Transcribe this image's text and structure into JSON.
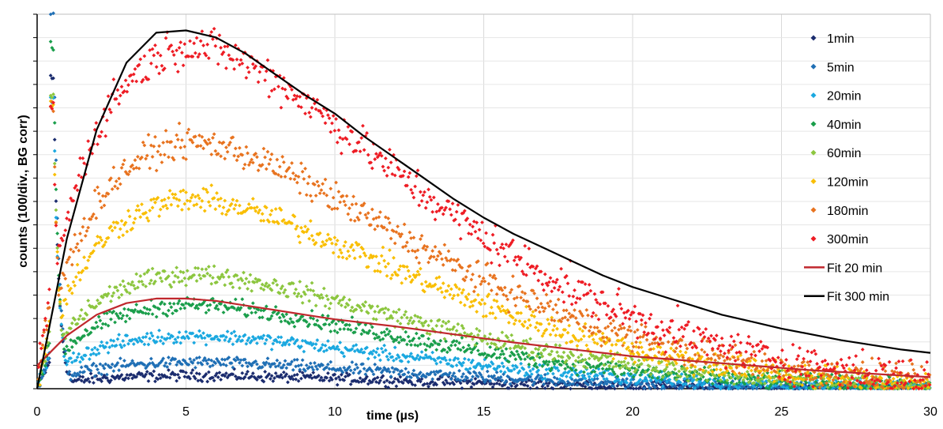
{
  "chart_data": {
    "type": "scatter",
    "xlabel": "time (µs)",
    "ylabel": "counts (100/div., BG corr)",
    "xlim": [
      0,
      30
    ],
    "ylim": [
      0,
      1620
    ],
    "x_ticks": [
      "0",
      "5",
      "10",
      "15",
      "20",
      "25",
      "30"
    ],
    "y_tick_count": 16,
    "grid": "vertical and horizontal, light gray",
    "legend_position": "right",
    "series": [
      {
        "name": "1min",
        "color": "#1b2c6e",
        "marker": "diamond",
        "amplitude": 60,
        "rise_us": 0.9,
        "decay_us": 8,
        "spike_peak": 1350,
        "baseline_end": 10
      },
      {
        "name": "5min",
        "color": "#1f6fb5",
        "marker": "diamond",
        "amplitude": 120,
        "rise_us": 0.9,
        "decay_us": 8,
        "spike_peak": 1620,
        "baseline_end": 20
      },
      {
        "name": "20min",
        "color": "#1aa8e0",
        "marker": "diamond",
        "amplitude": 240,
        "rise_us": 0.9,
        "decay_us": 8,
        "spike_peak": 1270,
        "baseline_end": 60
      },
      {
        "name": "40min",
        "color": "#1a9e4b",
        "marker": "diamond",
        "amplitude": 380,
        "rise_us": 0.9,
        "decay_us": 8,
        "spike_peak": 1460,
        "baseline_end": 110
      },
      {
        "name": "60min",
        "color": "#8cc63f",
        "marker": "diamond",
        "amplitude": 520,
        "rise_us": 0.9,
        "decay_us": 8,
        "spike_peak": 1270,
        "baseline_end": 140
      },
      {
        "name": "120min",
        "color": "#f9be00",
        "marker": "diamond",
        "amplitude": 860,
        "rise_us": 0.9,
        "decay_us": 8,
        "spike_peak": 1240,
        "baseline_end": 230
      },
      {
        "name": "180min",
        "color": "#e8731f",
        "marker": "diamond",
        "amplitude": 1120,
        "rise_us": 0.9,
        "decay_us": 8,
        "spike_peak": 1220,
        "baseline_end": 270
      },
      {
        "name": "300min",
        "color": "#ee1c24",
        "marker": "diamond",
        "amplitude": 1560,
        "rise_us": 0.9,
        "decay_us": 8,
        "spike_peak": 1180,
        "baseline_end": 380
      }
    ],
    "fits": [
      {
        "name": "Fit 20 min",
        "color": "#c0272d",
        "style": "line",
        "x": [
          0,
          1,
          2,
          3,
          4,
          5,
          6,
          7,
          8,
          9,
          10,
          12,
          14,
          16,
          18,
          20,
          22,
          24,
          26,
          28,
          30
        ],
        "y": [
          100,
          230,
          320,
          370,
          390,
          390,
          380,
          360,
          340,
          320,
          300,
          270,
          235,
          200,
          170,
          140,
          120,
          100,
          80,
          65,
          50
        ]
      },
      {
        "name": "Fit 300 min",
        "color": "#000000",
        "style": "line",
        "x": [
          0,
          1,
          2,
          3,
          4,
          5,
          6,
          7,
          8,
          9,
          10,
          11,
          12,
          13,
          14,
          15,
          16,
          17,
          18,
          19,
          20,
          21,
          22,
          23,
          24,
          25,
          26,
          27,
          28,
          29,
          30
        ],
        "y": [
          0,
          650,
          1120,
          1410,
          1540,
          1550,
          1520,
          1450,
          1360,
          1270,
          1190,
          1090,
          1000,
          910,
          820,
          740,
          670,
          610,
          550,
          490,
          440,
          400,
          360,
          320,
          290,
          260,
          235,
          210,
          190,
          170,
          155
        ]
      }
    ]
  }
}
